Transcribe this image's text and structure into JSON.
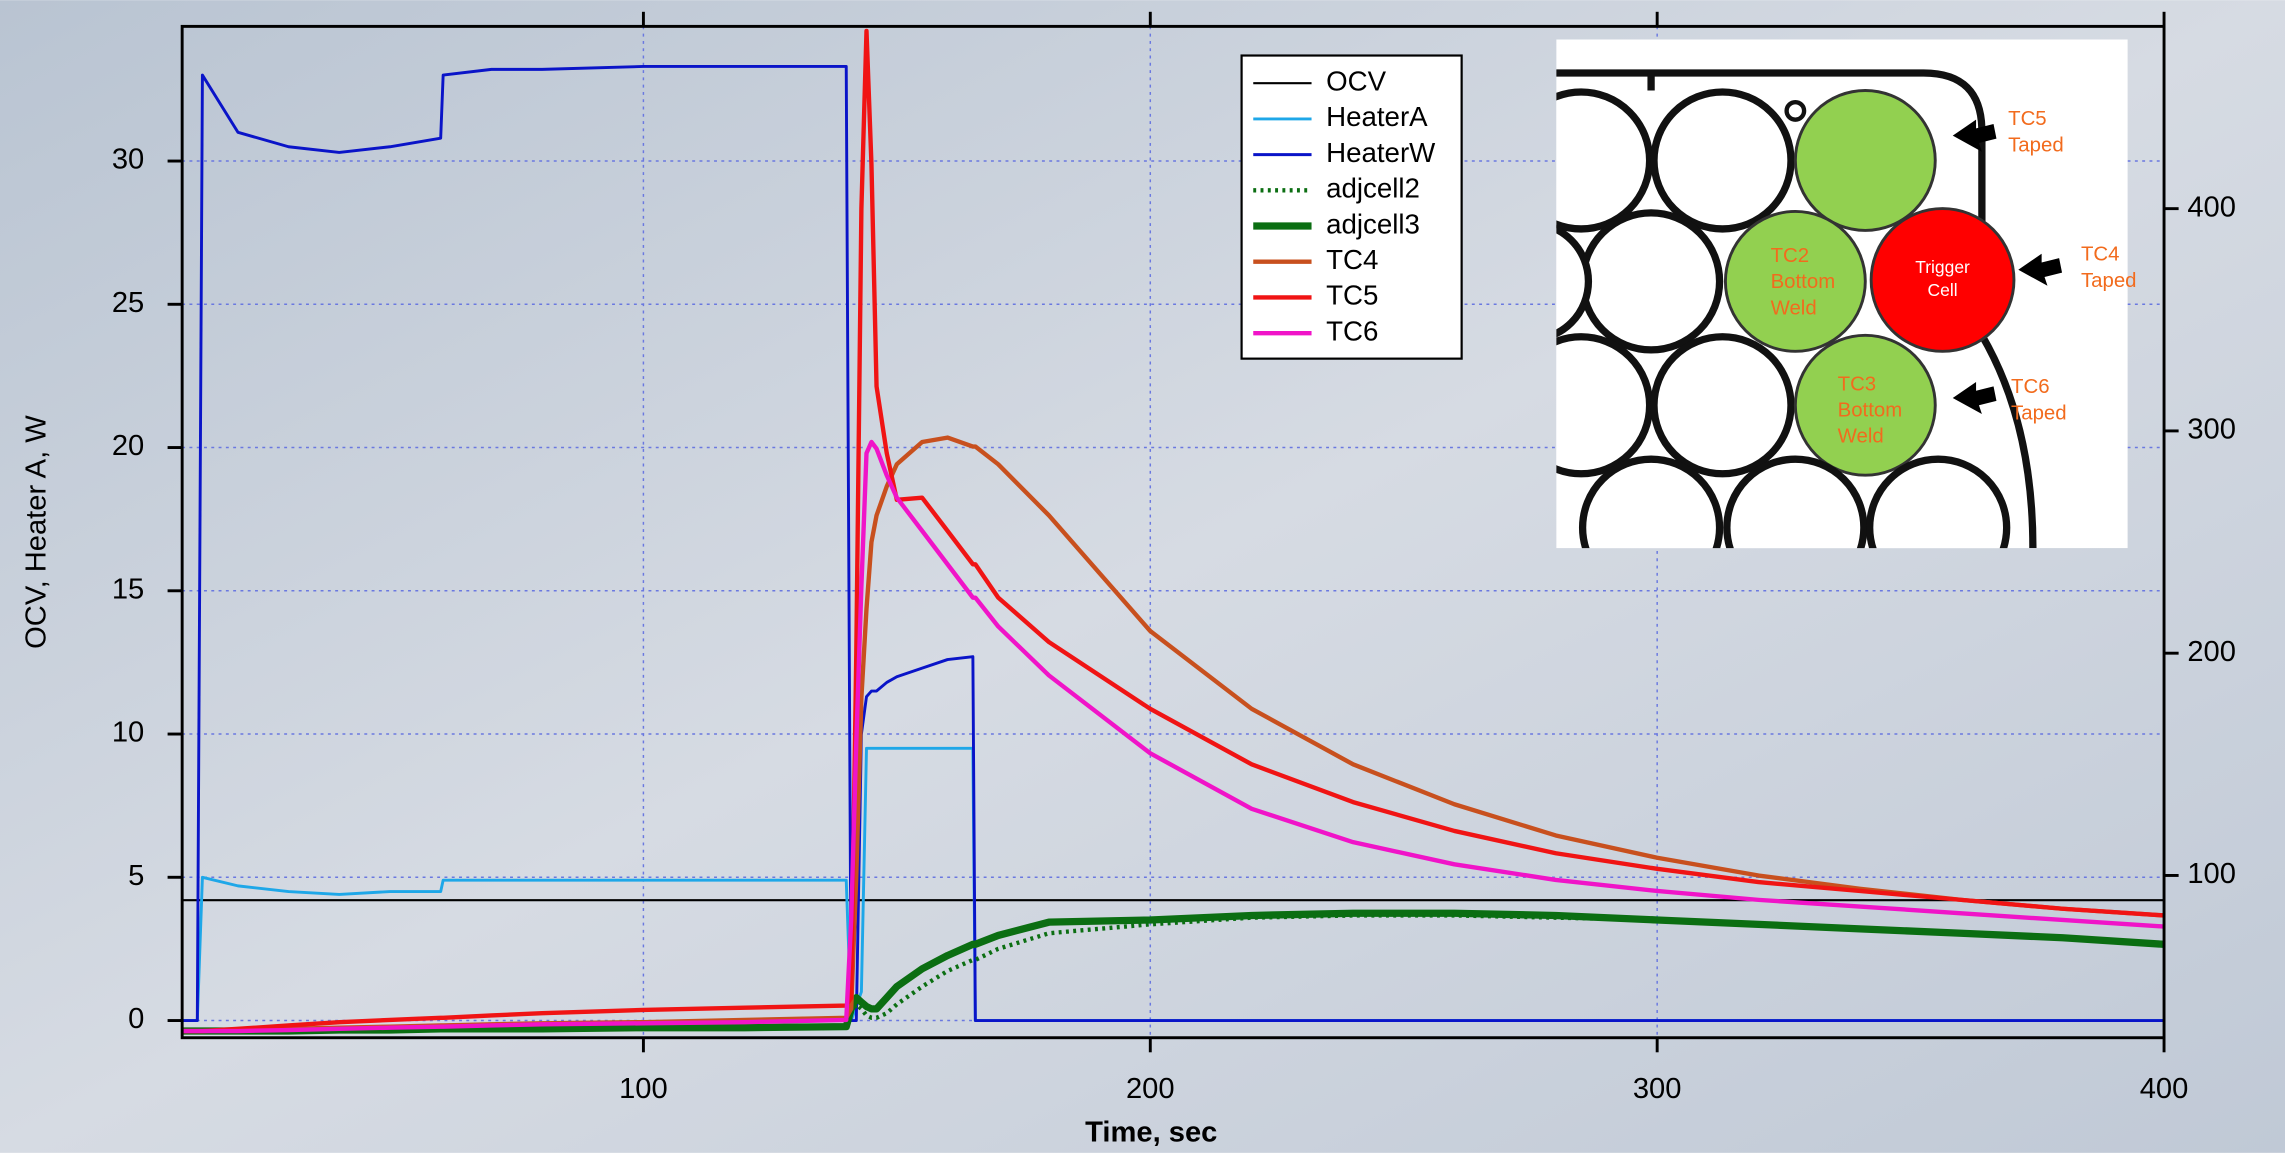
{
  "chart_data": {
    "type": "line",
    "xlabel": "Time, sec",
    "ylabel": "OCV, Heater A, W",
    "xlim": [
      9,
      400
    ],
    "ylim": [
      -0.6,
      34.7
    ],
    "y2lim": [
      27,
      482
    ],
    "xticks": [
      100,
      200,
      300,
      400
    ],
    "yticks": [
      0,
      5,
      10,
      15,
      20,
      25,
      30
    ],
    "y2ticks": [
      100,
      200,
      300,
      400
    ],
    "grid": true,
    "x": [
      9,
      12,
      13,
      20,
      30,
      40,
      50,
      60,
      60.5,
      70,
      80,
      100,
      120,
      140,
      141,
      142,
      143,
      144,
      145,
      146,
      148,
      150,
      155,
      160,
      165,
      165.5,
      170,
      180,
      200,
      220,
      240,
      260,
      280,
      300,
      320,
      340,
      360,
      380,
      400
    ],
    "series": [
      {
        "name": "OCV",
        "color": "#000000",
        "width": 1.5,
        "axis": "y",
        "values": [
          4.2,
          4.2,
          4.2,
          4.2,
          4.2,
          4.2,
          4.2,
          4.2,
          4.2,
          4.2,
          4.2,
          4.2,
          4.2,
          4.2,
          4.2,
          4.2,
          4.2,
          4.2,
          4.2,
          4.2,
          4.2,
          4.2,
          4.2,
          4.2,
          4.2,
          4.2,
          4.2,
          4.2,
          4.2,
          4.2,
          4.2,
          4.2,
          4.2,
          4.2,
          4.2,
          4.2,
          4.2,
          4.2,
          4.2
        ]
      },
      {
        "name": "HeaterA",
        "color": "#1ea7e8",
        "width": 2,
        "axis": "y",
        "values": [
          0,
          0,
          5,
          4.7,
          4.5,
          4.4,
          4.5,
          4.5,
          4.9,
          4.9,
          4.9,
          4.9,
          4.9,
          4.9,
          0,
          0.5,
          1,
          9.5,
          9.5,
          9.5,
          9.5,
          9.5,
          9.5,
          9.5,
          9.5,
          0,
          0,
          0,
          0,
          0,
          0,
          0,
          0,
          0,
          0,
          0,
          0,
          0,
          0
        ]
      },
      {
        "name": "HeaterW",
        "color": "#0a14c8",
        "width": 2,
        "axis": "y",
        "values": [
          0,
          0,
          33,
          31,
          30.5,
          30.3,
          30.5,
          30.8,
          33,
          33.2,
          33.2,
          33.3,
          33.3,
          33.3,
          0,
          0,
          10,
          11.3,
          11.5,
          11.5,
          11.8,
          12,
          12.3,
          12.6,
          12.7,
          0,
          0,
          0,
          0,
          0,
          0,
          0,
          0,
          0,
          0,
          0,
          0,
          0,
          0
        ]
      },
      {
        "name": "adjcell2",
        "color": "#0b6e12",
        "width": 3,
        "style": "dotted",
        "axis": "y2",
        "values": [
          30,
          30,
          30,
          30,
          30,
          30.5,
          30.5,
          31,
          31,
          31,
          31,
          31.5,
          31.5,
          32,
          38,
          42,
          40,
          37,
          36,
          36,
          38,
          42,
          50,
          57,
          62,
          62,
          67,
          74,
          78,
          81,
          82,
          82,
          81,
          80,
          78,
          76,
          74,
          72,
          69
        ]
      },
      {
        "name": "adjcell3",
        "color": "#0b6e12",
        "width": 5,
        "axis": "y2",
        "values": [
          30,
          30,
          30,
          30,
          30,
          30.5,
          30.5,
          31,
          31,
          31,
          31,
          31.5,
          31.5,
          32,
          40,
          45,
          43,
          41,
          40,
          40,
          45,
          50,
          58,
          64,
          69,
          69,
          73,
          79,
          80,
          82,
          83,
          83,
          82,
          80,
          78,
          76,
          74,
          72,
          69
        ]
      },
      {
        "name": "TC4",
        "color": "#c8501e",
        "width": 3,
        "axis": "y2",
        "values": [
          30,
          30,
          30,
          30.5,
          31,
          31.5,
          32,
          32.5,
          32.5,
          33,
          33.5,
          34,
          35,
          36,
          40,
          100,
          180,
          220,
          250,
          262,
          275,
          285,
          295,
          297,
          293,
          293,
          285,
          262,
          210,
          175,
          150,
          132,
          118,
          108,
          100,
          94,
          89,
          85,
          82
        ]
      },
      {
        "name": "TC5",
        "color": "#f01414",
        "width": 3,
        "axis": "y2",
        "values": [
          30,
          30,
          30,
          31,
          32.5,
          34,
          35,
          36,
          36,
          37,
          38,
          39.5,
          40.5,
          41.5,
          45,
          200,
          400,
          480,
          420,
          320,
          290,
          269,
          270,
          255,
          240,
          240,
          225,
          205,
          175,
          150,
          133,
          120,
          110,
          103,
          97,
          93,
          89,
          85,
          82
        ]
      },
      {
        "name": "TC6",
        "color": "#f014c8",
        "width": 3,
        "axis": "y2",
        "values": [
          30,
          30,
          30,
          30,
          30.5,
          31,
          31.5,
          32,
          32,
          32.5,
          33,
          33.5,
          34,
          35,
          80,
          160,
          230,
          290,
          295,
          292,
          280,
          270,
          255,
          240,
          225,
          225,
          212,
          190,
          155,
          130,
          115,
          105,
          98,
          93,
          89,
          86,
          83,
          80,
          77
        ]
      }
    ],
    "annotations": [
      [
        "TC5",
        "Taped"
      ],
      [
        "TC4",
        "Taped"
      ],
      [
        "TC6",
        "Taped"
      ],
      [
        "TC2",
        "Bottom",
        "Weld"
      ],
      [
        "Trigger",
        "Cell"
      ],
      [
        "TC3",
        "Bottom",
        "Weld"
      ]
    ]
  }
}
